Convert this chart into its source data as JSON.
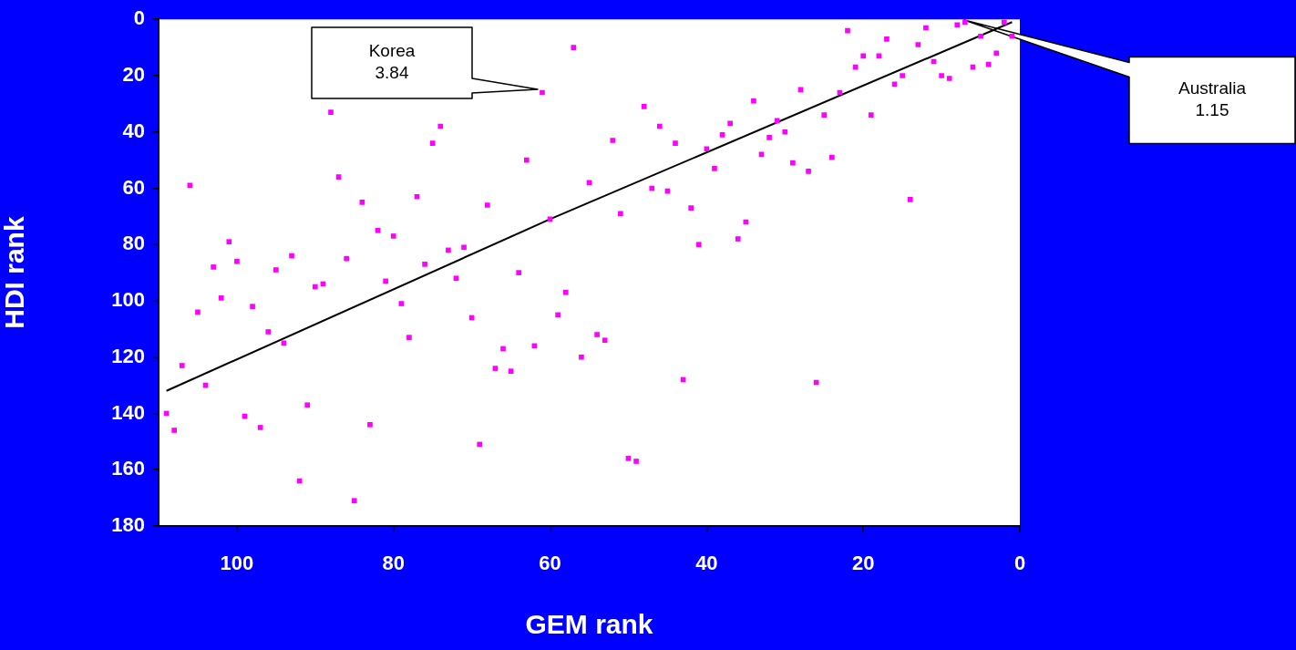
{
  "chart_data": {
    "type": "scatter",
    "xlabel": "GEM rank",
    "ylabel": "HDI rank",
    "xlim": [
      110,
      0
    ],
    "ylim": [
      180,
      0
    ],
    "xticks": [
      100,
      80,
      60,
      40,
      20,
      0
    ],
    "yticks": [
      0,
      20,
      40,
      60,
      80,
      100,
      120,
      140,
      160,
      180
    ],
    "grid": false,
    "legend": false,
    "marker": "square",
    "series": [
      {
        "color": "#ff00ff",
        "x": [
          109,
          108,
          107,
          106,
          105,
          104,
          103,
          102,
          101,
          100,
          99,
          98,
          97,
          96,
          95,
          94,
          93,
          92,
          91,
          90,
          89,
          88,
          87,
          86,
          85,
          84,
          83,
          82,
          81,
          80,
          79,
          78,
          77,
          76,
          75,
          74,
          73,
          72,
          71,
          70,
          69,
          68,
          67,
          66,
          65,
          64,
          63,
          62,
          61,
          60,
          59,
          58,
          57,
          56,
          55,
          54,
          53,
          52,
          51,
          50,
          49,
          48,
          47,
          46,
          45,
          44,
          43,
          42,
          41,
          40,
          39,
          38,
          37,
          36,
          35,
          34,
          33,
          32,
          31,
          30,
          29,
          28,
          27,
          26,
          25,
          24,
          23,
          22,
          21,
          20,
          19,
          18,
          17,
          16,
          15,
          14,
          13,
          12,
          11,
          10,
          9,
          8,
          7,
          6,
          5,
          4,
          3,
          2,
          1
        ],
        "values": [
          140,
          146,
          123,
          59,
          104,
          130,
          88,
          99,
          79,
          86,
          141,
          102,
          145,
          111,
          89,
          115,
          84,
          164,
          137,
          95,
          94,
          33,
          56,
          85,
          171,
          65,
          144,
          75,
          93,
          77,
          101,
          113,
          63,
          87,
          44,
          38,
          82,
          92,
          81,
          106,
          151,
          66,
          124,
          117,
          125,
          90,
          50,
          116,
          26,
          71,
          105,
          97,
          10,
          120,
          58,
          112,
          114,
          43,
          69,
          156,
          157,
          31,
          60,
          38,
          61,
          44,
          128,
          67,
          80,
          46,
          53,
          41,
          37,
          78,
          72,
          29,
          48,
          42,
          36,
          40,
          51,
          25,
          54,
          129,
          34,
          49,
          26,
          4,
          17,
          13,
          34,
          13,
          7,
          23,
          20,
          64,
          9,
          3,
          15,
          20,
          21,
          2,
          1,
          17,
          6,
          16,
          12,
          1,
          6
        ]
      },
      {
        "type": "line",
        "color": "#000000",
        "marker": "none",
        "x": [
          109,
          60,
          1
        ],
        "values": [
          132,
          71,
          1
        ]
      }
    ],
    "annotations": [
      "Korea\n3.84",
      "Australia\n1.15"
    ]
  }
}
